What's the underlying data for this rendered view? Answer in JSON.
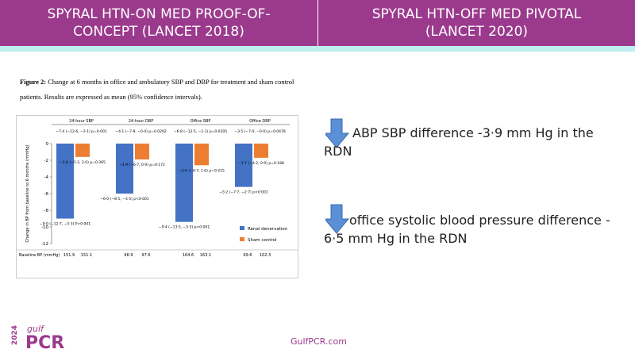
{
  "header": {
    "left_title": "SPYRAL HTN-ON MED PROOF-OF-CONCEPT (LANCET 2018)",
    "right_title": "SPYRAL HTN-OFF MED PIVOTAL (LANCET 2020)"
  },
  "figure": {
    "caption_label": "Figure 2:",
    "caption": "Change at 6 months in office and ambulatory SBP and DBP for treatment and sham control patients. Results are expressed as mean (95% confidence intervals).",
    "type": "bar",
    "y_label": "Change in BP from baseline to 6 months (mmHg)",
    "categories": [
      "24-hour SBP",
      "24-hour DBP",
      "Office SBP",
      "Office DBP"
    ],
    "differences": [
      "−7·4 (−12·6, −2·1) p=0·001",
      "−4·1 (−7·8, −0·4) p=0·0292",
      "−6·8 (−12·5, −1·1) p=0·0205",
      "−3·5 (−7·0, −0·0) p=0·0478"
    ],
    "ylim": [
      0,
      -12
    ],
    "yticks": [
      0,
      -2,
      -4,
      -6,
      -8,
      -10,
      -12
    ],
    "series": [
      {
        "name": "Renal denervation",
        "color": "#4472c4",
        "values": [
          -9.0,
          -6.0,
          -9.4,
          -5.2
        ],
        "value_labels": [
          "−9·0 (−12·7, −5·3) P<0·001",
          "−6·0 (−8·5, −3·5) p<0·001",
          "−9·4 (−13·5, −5·3) p<0·001",
          "−5·2 (−7·7, −2·7) p<0·001"
        ]
      },
      {
        "name": "Sham control",
        "color": "#ed7d31",
        "values": [
          -1.6,
          -1.9,
          -2.6,
          -1.7
        ],
        "value_labels": [
          "−1·6 (−5·2, 2·0) p=0·365",
          "−1·9 (−6·7, 0·9) p=0·172",
          "−2·6 (−6·7, 1·6) p=0·215",
          "−1·7 (−4·2, 0·9) p=0·188"
        ]
      }
    ],
    "baseline_label": "Baseline BP (mmHg)",
    "baseline": [
      [
        "151·9",
        "151·1"
      ],
      [
        "96·9",
        "97·6"
      ],
      [
        "164·6",
        "163·1"
      ],
      [
        "99·6",
        "102·3"
      ]
    ]
  },
  "bullets": [
    "ABP SBP difference  -3·9 mm Hg in the RDN",
    "office systolic blood pressure difference - 6·5 mm Hg in the RDN"
  ],
  "footer": {
    "url": "GulfPCR.com",
    "logo_year": "2024",
    "logo_gulf": "gulf",
    "logo_pcr": "PCR"
  }
}
